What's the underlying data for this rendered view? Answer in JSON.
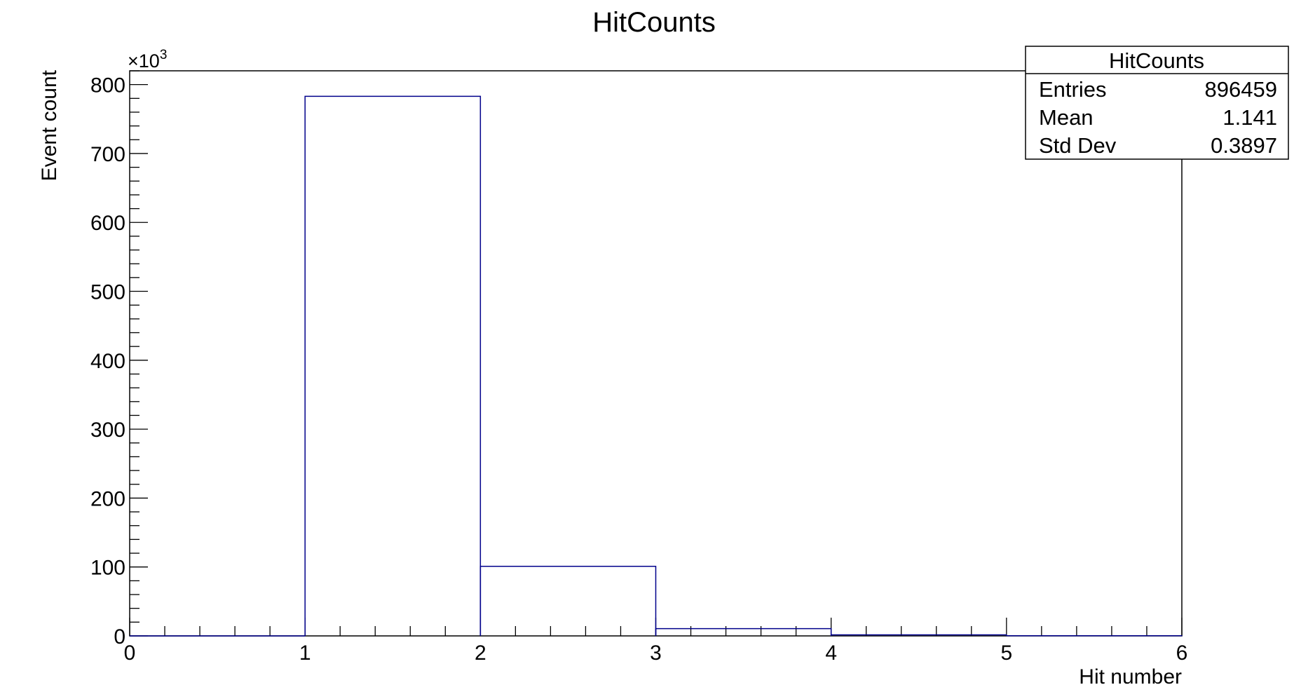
{
  "chart_data": {
    "type": "histogram",
    "title": "HitCounts",
    "xlabel": "Hit number",
    "ylabel": "Event count",
    "y_exponent_base": "×10",
    "y_exponent_power": "3",
    "xlim": [
      0,
      6
    ],
    "ylim": [
      0,
      820000
    ],
    "x_ticks": [
      0,
      1,
      2,
      3,
      4,
      5,
      6
    ],
    "x_tick_labels": [
      "0",
      "1",
      "2",
      "3",
      "4",
      "5",
      "6"
    ],
    "y_ticks": [
      0,
      100000,
      200000,
      300000,
      400000,
      500000,
      600000,
      700000,
      800000
    ],
    "y_tick_labels": [
      "0",
      "100",
      "200",
      "300",
      "400",
      "500",
      "600",
      "700",
      "800"
    ],
    "bins": [
      {
        "low": 0,
        "high": 1,
        "value": 0
      },
      {
        "low": 1,
        "high": 2,
        "value": 783000
      },
      {
        "low": 2,
        "high": 3,
        "value": 101000
      },
      {
        "low": 3,
        "high": 4,
        "value": 10500
      },
      {
        "low": 4,
        "high": 5,
        "value": 1500
      },
      {
        "low": 5,
        "high": 6,
        "value": 200
      }
    ],
    "line_color": "#00008b",
    "grid": false,
    "stats_box": {
      "title": "HitCounts",
      "rows": [
        {
          "label": "Entries",
          "value": "896459"
        },
        {
          "label": "Mean",
          "value": "1.141"
        },
        {
          "label": "Std Dev",
          "value": "0.3897"
        }
      ],
      "placement": "top-right"
    }
  }
}
